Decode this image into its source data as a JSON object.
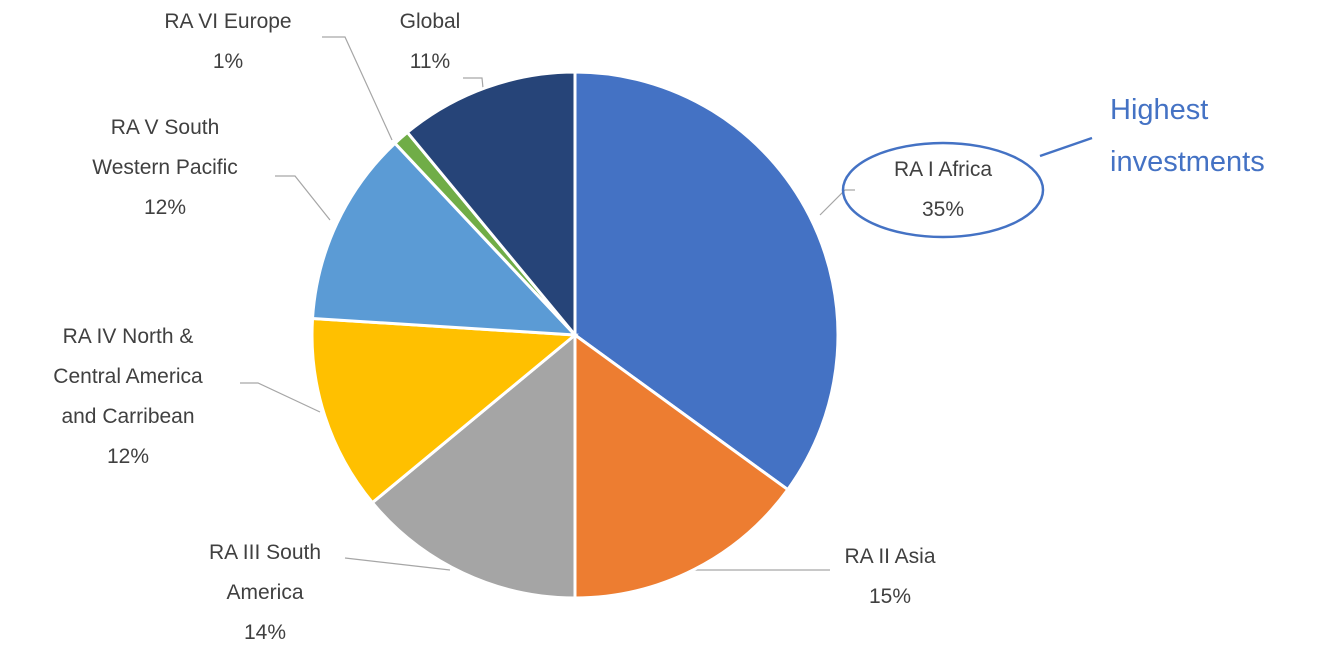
{
  "chart_data": {
    "type": "pie",
    "categories": [
      "RA I Africa",
      "RA II Asia",
      "RA III South America",
      "RA IV North & Central America and Carribean",
      "RA V South Western Pacific",
      "RA VI Europe",
      "Global"
    ],
    "values": [
      35,
      15,
      14,
      12,
      12,
      1,
      11
    ],
    "value_labels": [
      "35%",
      "15%",
      "14%",
      "12%",
      "12%",
      "1%",
      "11%"
    ],
    "colors": [
      "#4472c4",
      "#ed7d31",
      "#a5a5a5",
      "#ffc000",
      "#5b9bd5",
      "#70ad47",
      "#264478"
    ],
    "annotation": "Highest investments"
  }
}
